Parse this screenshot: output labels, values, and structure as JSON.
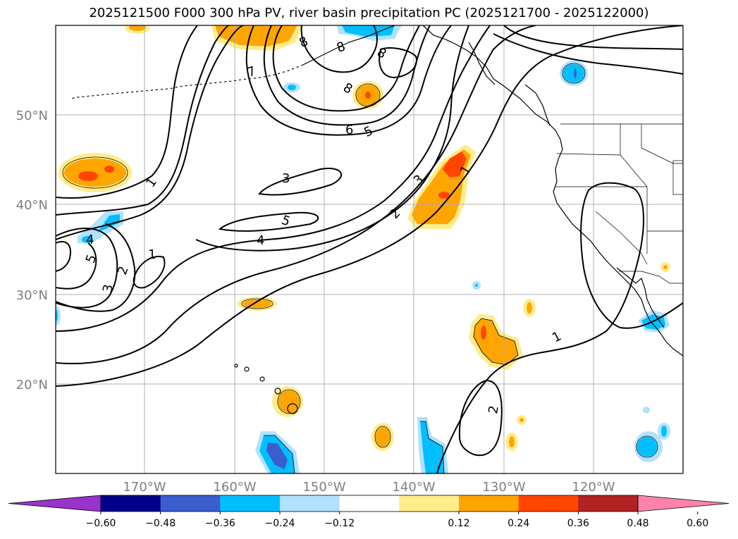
{
  "title": "2025121500 F000 300 hPa PV, river basin precipitation PC (2025121700 - 2025122000)",
  "lat_labels": [
    "50°N",
    "40°N",
    "30°N",
    "20°N"
  ],
  "lon_labels": [
    "170°W",
    "160°W",
    "150°W",
    "140°W",
    "130°W",
    "120°W"
  ],
  "contour_labels": [
    "1",
    "1",
    "1",
    "1",
    "2",
    "2",
    "2",
    "3",
    "3",
    "3",
    "4",
    "4",
    "5",
    "5",
    "5",
    "6",
    "7",
    "8",
    "8",
    "8",
    "8"
  ],
  "colorbar": {
    "ticks": [
      "−0.60",
      "−0.48",
      "−0.36",
      "−0.24",
      "−0.12",
      "0.12",
      "0.24",
      "0.36",
      "0.48",
      "0.60"
    ],
    "colors": [
      "#9933cc",
      "#00008b",
      "#3a5fcd",
      "#00bfff",
      "#b0e2ff",
      "#ffffff",
      "#ffec8b",
      "#ffa500",
      "#ff4500",
      "#b22222",
      "#ff82ab"
    ]
  },
  "fill_colors": {
    "light_blue": "#b0e2ff",
    "blue": "#00bfff",
    "mid_blue": "#3a5fcd",
    "yellow": "#ffec8b",
    "orange": "#ffa500",
    "red_orange": "#ff4500"
  }
}
